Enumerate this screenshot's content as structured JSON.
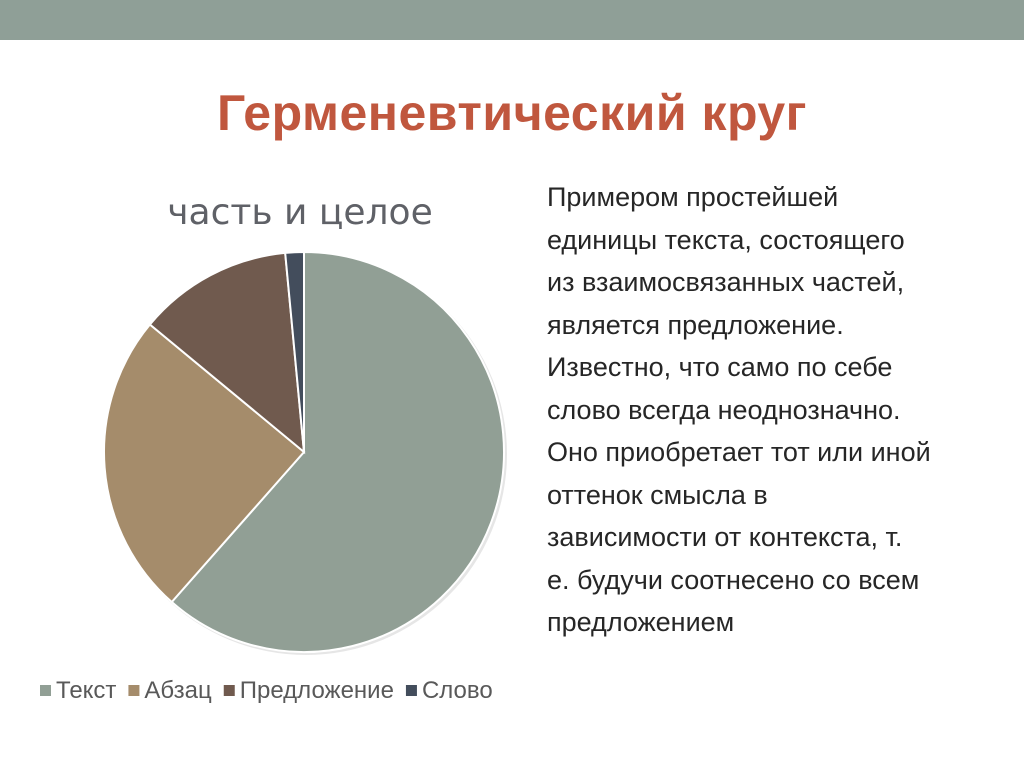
{
  "slide": {
    "title": "Герменевтический круг",
    "top_bar_color": "#8f9f97",
    "title_color": "#c0573e"
  },
  "body_text": {
    "lines": [
      "Примером простейшей",
      "единицы текста, состоящего",
      "из взаимосвязанных частей,",
      "является предложение.",
      "Известно, что само по себе",
      "слово всегда неоднозначно.",
      "Оно приобретает тот или иной",
      "оттенок смысла в",
      "зависимости от контекста, т.",
      "е. будучи соотнесено со всем",
      "предложением"
    ]
  },
  "chart_data": {
    "type": "pie",
    "title": "часть и целое",
    "categories": [
      "Текст",
      "Абзац",
      "Предложение",
      "Слово"
    ],
    "values": [
      61.5,
      24.5,
      12.5,
      1.5
    ],
    "colors": [
      "#919f95",
      "#a58c6b",
      "#705a4e",
      "#434d5c"
    ],
    "start_angle_deg": 0,
    "direction": "clockwise",
    "legend_position": "bottom"
  }
}
